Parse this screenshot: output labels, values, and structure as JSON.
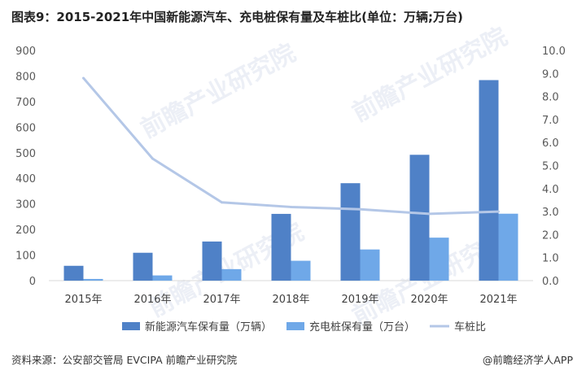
{
  "title": "图表9：2015-2021年中国新能源汽车、充电桩保有量及车桩比(单位：万辆;万台)",
  "source": "资料来源：公安部交管局 EVCIPA 前瞻产业研究院",
  "credit": "@前瞻经济学人APP",
  "watermark": "前瞻产业研究院",
  "colors": {
    "ev_bar": "#4f81c7",
    "pile_bar": "#6fa8e8",
    "ratio_line": "#b4c7e7",
    "axis": "#d9d9d9"
  },
  "chart_data": {
    "type": "bar",
    "categories": [
      "2015年",
      "2016年",
      "2017年",
      "2018年",
      "2019年",
      "2020年",
      "2021年"
    ],
    "series": [
      {
        "name": "新能源汽车保有量（万辆）",
        "type": "bar",
        "axis": "left",
        "values": [
          58,
          109,
          153,
          261,
          381,
          492,
          784
        ]
      },
      {
        "name": "充电桩保有量（万台）",
        "type": "bar",
        "axis": "left",
        "values": [
          6.6,
          20.4,
          45,
          77.7,
          121.9,
          168.1,
          261.7
        ]
      },
      {
        "name": "车桩比",
        "type": "line",
        "axis": "right",
        "values": [
          8.8,
          5.3,
          3.4,
          3.2,
          3.1,
          2.9,
          3.0
        ]
      }
    ],
    "y_left": {
      "min": 0,
      "max": 900,
      "ticks": [
        "0",
        "100",
        "200",
        "300",
        "400",
        "500",
        "600",
        "700",
        "800",
        "900"
      ]
    },
    "y_right": {
      "min": 0,
      "max": 10,
      "ticks": [
        "0.0",
        "1.0",
        "2.0",
        "3.0",
        "4.0",
        "5.0",
        "6.0",
        "7.0",
        "8.0",
        "9.0",
        "10.0"
      ]
    },
    "grid": false,
    "legend": "bottom"
  }
}
